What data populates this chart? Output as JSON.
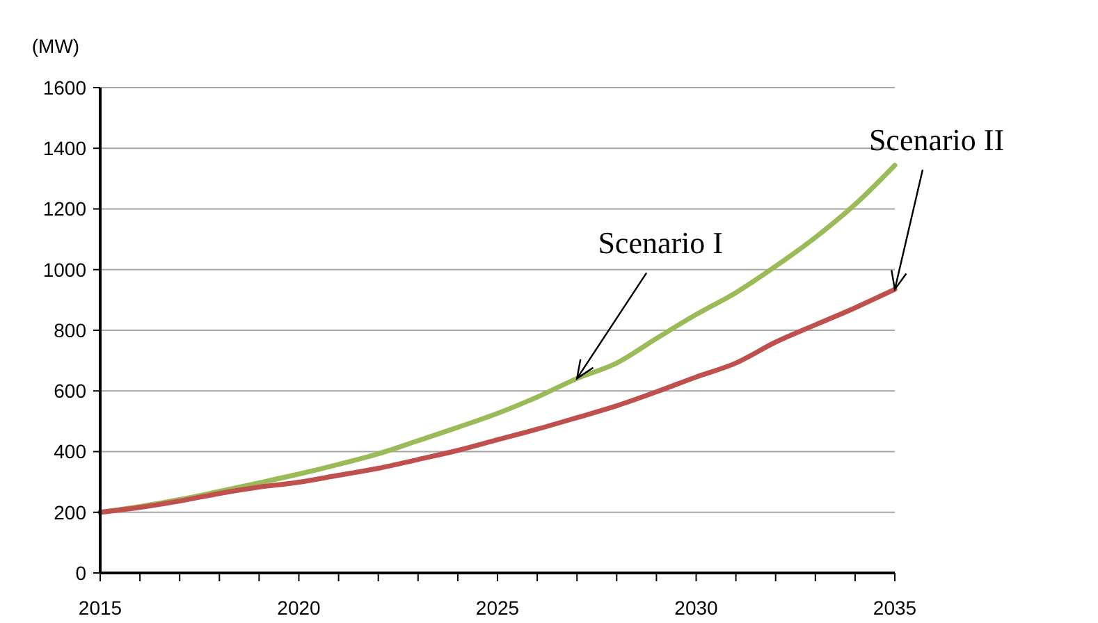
{
  "chart_data": {
    "type": "line",
    "ylabel": "(MW)",
    "x": [
      2015,
      2016,
      2017,
      2018,
      2019,
      2020,
      2021,
      2022,
      2023,
      2024,
      2025,
      2026,
      2027,
      2028,
      2029,
      2030,
      2031,
      2032,
      2033,
      2034,
      2035
    ],
    "series": [
      {
        "name": "Scenario I",
        "color": "#9bbb59",
        "values": [
          200,
          219,
          242,
          269,
          297,
          326,
          358,
          393,
          436,
          480,
          526,
          580,
          641,
          692,
          773,
          852,
          924,
          1011,
          1106,
          1215,
          1344
        ]
      },
      {
        "name": "Scenario II",
        "color": "#c0504d",
        "values": [
          200,
          216,
          237,
          262,
          283,
          299,
          322,
          345,
          374,
          404,
          439,
          474,
          512,
          551,
          597,
          646,
          692,
          761,
          818,
          874,
          935
        ]
      }
    ],
    "xlim": [
      2015,
      2035
    ],
    "xticks": [
      2015,
      {
        "value": 2016,
        "label": null
      },
      {
        "value": 2017,
        "label": null
      },
      {
        "value": 2018,
        "label": null
      },
      {
        "value": 2019,
        "label": null
      },
      2020,
      {
        "value": 2021,
        "label": null
      },
      {
        "value": 2022,
        "label": null
      },
      {
        "value": 2023,
        "label": null
      },
      {
        "value": 2024,
        "label": null
      },
      2025,
      {
        "value": 2026,
        "label": null
      },
      {
        "value": 2027,
        "label": null
      },
      {
        "value": 2028,
        "label": null
      },
      {
        "value": 2029,
        "label": null
      },
      2030,
      {
        "value": 2031,
        "label": null
      },
      {
        "value": 2032,
        "label": null
      },
      {
        "value": 2033,
        "label": null
      },
      {
        "value": 2034,
        "label": null
      },
      2035
    ],
    "ylim": [
      0,
      1600
    ],
    "yticks": [
      0,
      200,
      400,
      600,
      800,
      1000,
      1200,
      1400,
      1600
    ],
    "grid": "y",
    "legend": false,
    "marker": "none",
    "line_style": "solid"
  }
}
